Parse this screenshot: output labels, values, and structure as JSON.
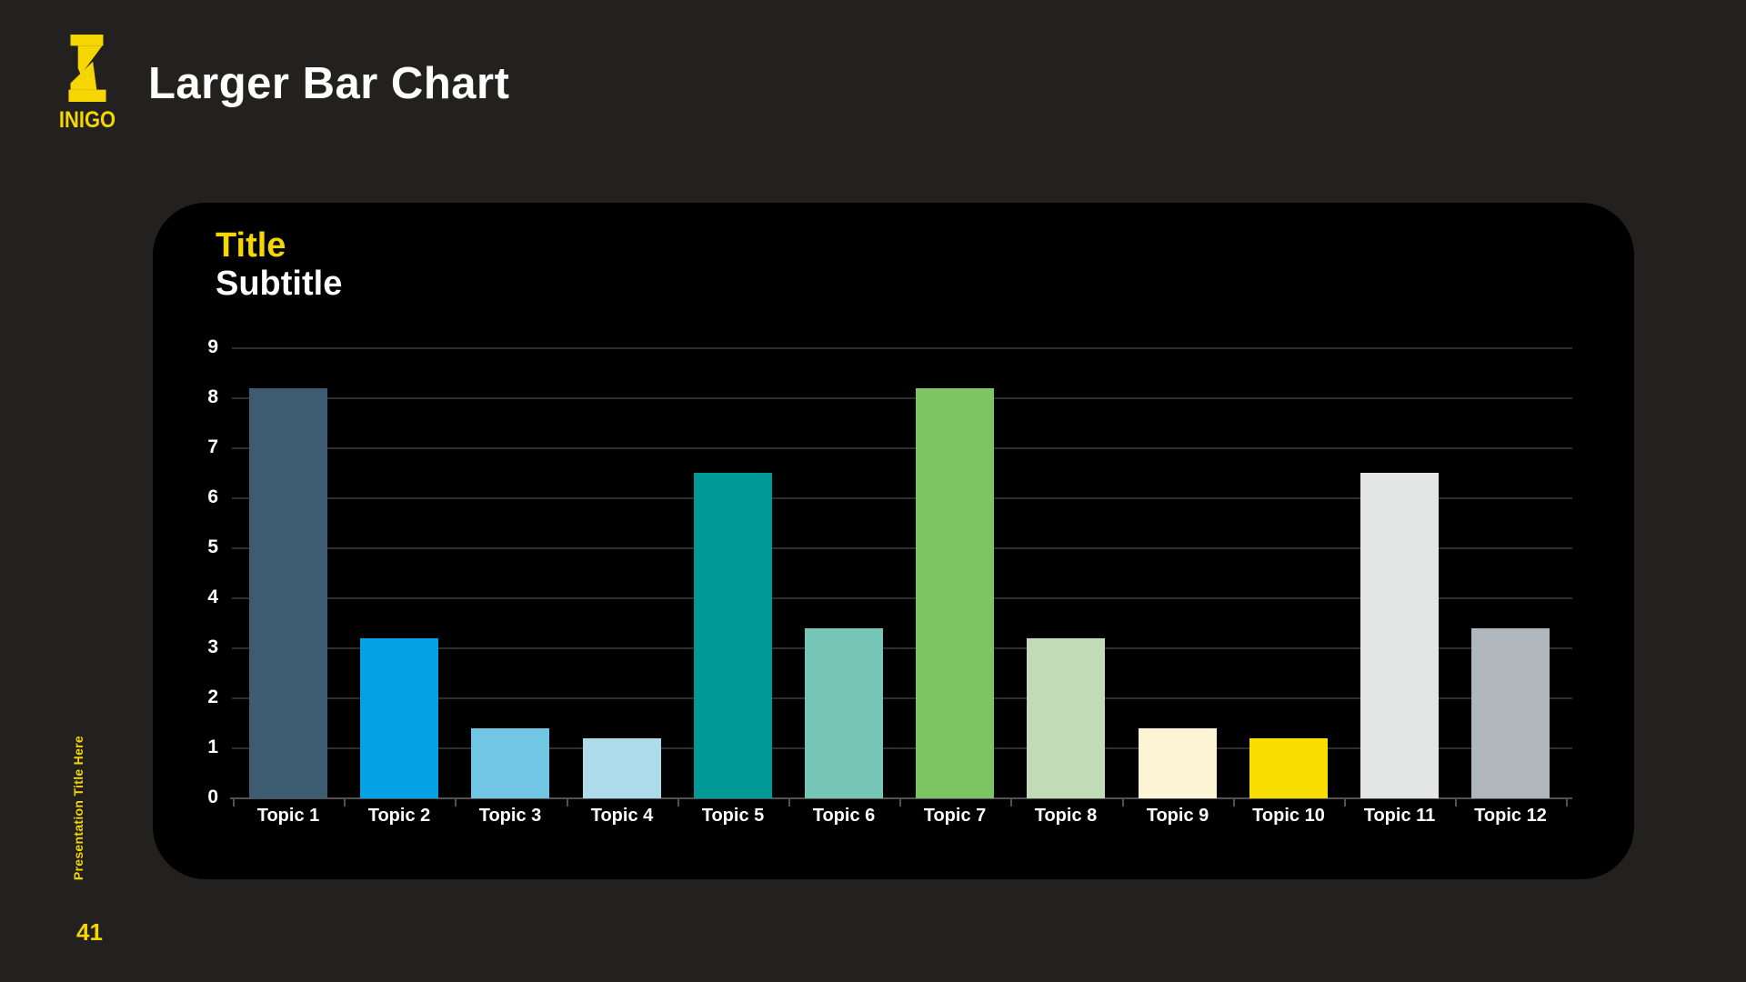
{
  "slide": {
    "title": "Larger Bar Chart",
    "page_number": "41",
    "vertical_footer": "Presentation Title Here",
    "brand_name": "INIGO"
  },
  "colors": {
    "background": "#232120",
    "panel_background": "#000000",
    "accent_yellow": "#F5D602",
    "text_white": "#FFFFFF",
    "gridline": "#2E2E2E",
    "axis": "#525252"
  },
  "chart_data": {
    "type": "bar",
    "title": "Title",
    "subtitle": "Subtitle",
    "categories": [
      "Topic 1",
      "Topic 2",
      "Topic 3",
      "Topic 4",
      "Topic 5",
      "Topic 6",
      "Topic 7",
      "Topic 8",
      "Topic 9",
      "Topic 10",
      "Topic 11",
      "Topic 12"
    ],
    "values": [
      8.2,
      3.2,
      1.4,
      1.2,
      6.5,
      3.4,
      8.2,
      3.2,
      1.4,
      1.2,
      6.5,
      3.4
    ],
    "bar_colors": [
      "#3D5C72",
      "#04A1E4",
      "#70C6E3",
      "#ADDBEA",
      "#009A96",
      "#76C6B8",
      "#7DC462",
      "#C0DBB5",
      "#FCF4D4",
      "#F9DE02",
      "#E4E6E6",
      "#AFB6BC"
    ],
    "xlabel": "",
    "ylabel": "",
    "ylim": [
      0,
      9
    ],
    "yticks": [
      0,
      1,
      2,
      3,
      4,
      5,
      6,
      7,
      8,
      9
    ],
    "grid": true,
    "legend": false
  }
}
